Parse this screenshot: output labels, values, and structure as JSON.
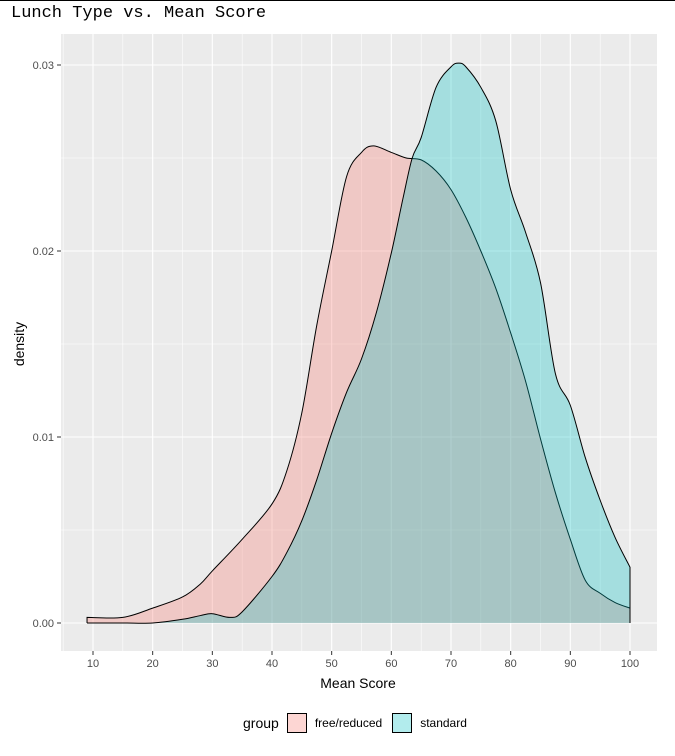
{
  "chart_data": {
    "type": "area",
    "subtype": "density",
    "title": "Lunch Type vs. Mean Score",
    "xlabel": "Mean Score",
    "ylabel": "density",
    "xlim": [
      5,
      105
    ],
    "ylim": [
      -0.0015,
      0.0317
    ],
    "x_ticks": [
      10,
      20,
      30,
      40,
      50,
      60,
      70,
      80,
      90,
      100
    ],
    "y_ticks": [
      0.0,
      0.01,
      0.02,
      0.03
    ],
    "y_tick_labels": [
      "0.00",
      "0.01",
      "0.02",
      "0.03"
    ],
    "grid": true,
    "legend": {
      "title": "group",
      "position": "bottom"
    },
    "series": [
      {
        "name": "free/reduced",
        "color": "#F8766D",
        "x": [
          9,
          15,
          20,
          25,
          28,
          30,
          35,
          40,
          42.5,
          45,
          47.5,
          50,
          52.5,
          55,
          57,
          60,
          62.5,
          65,
          67.5,
          70,
          72.5,
          75,
          77.5,
          80,
          82.5,
          85,
          87.5,
          90,
          92.5,
          95,
          97.5,
          100
        ],
        "values": [
          0.0003,
          0.0003,
          0.0008,
          0.0014,
          0.0021,
          0.0028,
          0.0045,
          0.0064,
          0.0082,
          0.0113,
          0.016,
          0.02,
          0.024,
          0.0253,
          0.02565,
          0.0253,
          0.025,
          0.0249,
          0.0243,
          0.0233,
          0.0218,
          0.02,
          0.018,
          0.0156,
          0.013,
          0.0099,
          0.007,
          0.0045,
          0.0023,
          0.0016,
          0.0011,
          0.0008
        ]
      },
      {
        "name": "standard",
        "color": "#00BFC4",
        "x": [
          9,
          15,
          20,
          25,
          28,
          30,
          33,
          35,
          40,
          42.5,
          45,
          47.5,
          50,
          52.5,
          55,
          57.5,
          60,
          62,
          63.5,
          65,
          67.5,
          70,
          71.3,
          72.5,
          75,
          77.5,
          80,
          82.5,
          85,
          87.5,
          90,
          92.5,
          95,
          97.5,
          100
        ],
        "values": [
          0.0,
          0.0,
          0.0,
          0.0002,
          0.0004,
          0.0005,
          0.0003,
          0.0006,
          0.0025,
          0.0038,
          0.0055,
          0.0077,
          0.0102,
          0.0124,
          0.0142,
          0.0167,
          0.0199,
          0.0229,
          0.025,
          0.0261,
          0.0288,
          0.0299,
          0.0301,
          0.0299,
          0.0288,
          0.027,
          0.0233,
          0.021,
          0.0183,
          0.0134,
          0.0117,
          0.0089,
          0.0066,
          0.0046,
          0.003
        ]
      }
    ]
  },
  "legend": {
    "title": "group",
    "items": [
      {
        "label": "free/reduced",
        "color": "#F8766D"
      },
      {
        "label": "standard",
        "color": "#00BFC4"
      }
    ]
  }
}
